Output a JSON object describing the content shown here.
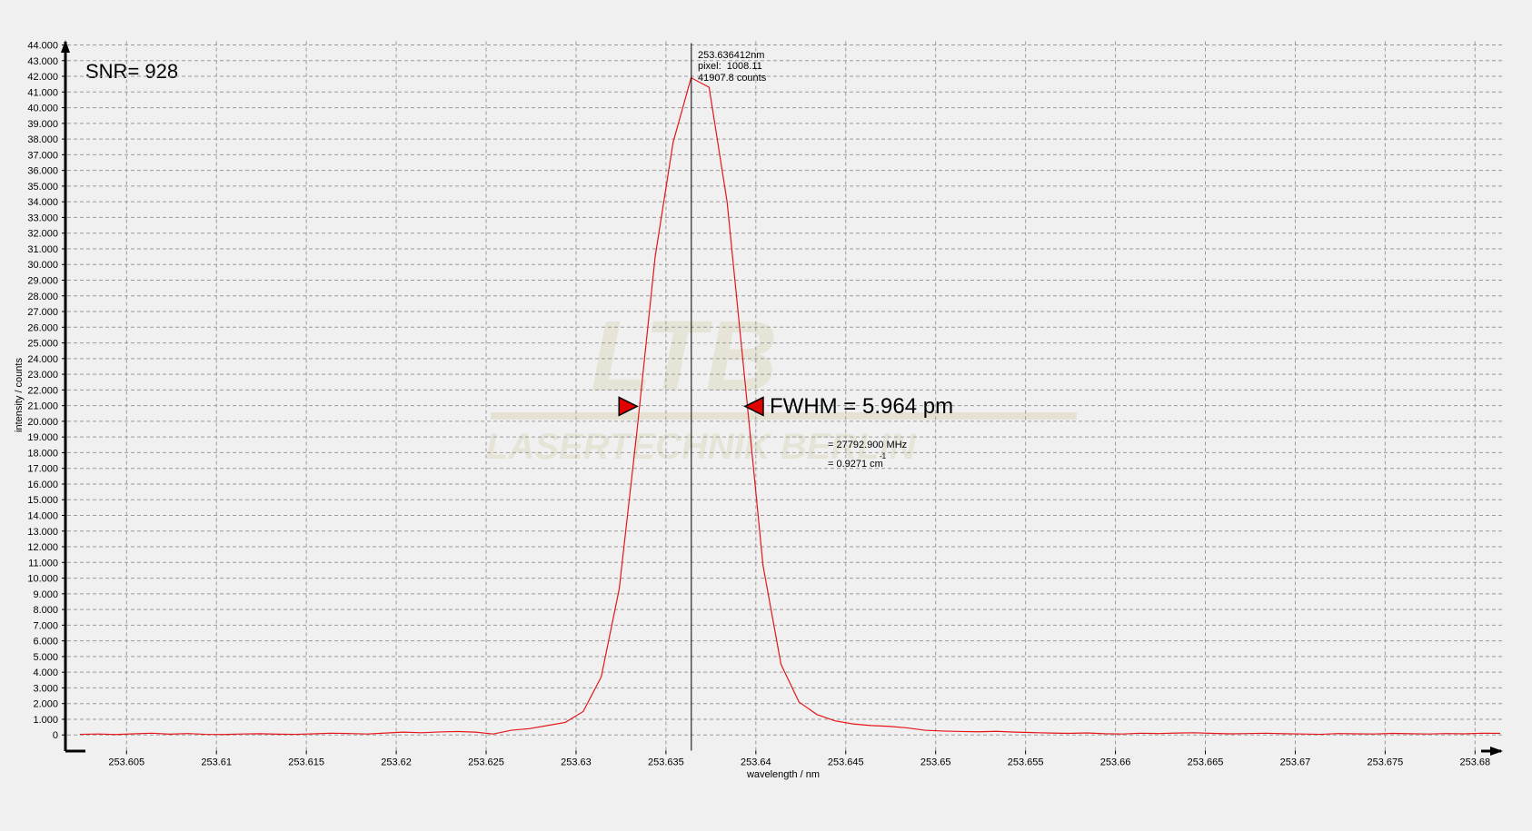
{
  "chart_data": {
    "type": "line",
    "title": "SNR= 928",
    "x_label": "wavelength / nm",
    "y_label": "intensity / counts",
    "color": "#e3161b",
    "grid": true,
    "xlim": [
      253.6016,
      253.6815
    ],
    "ylim": [
      -1000,
      44000
    ],
    "xticks": [
      253.605,
      253.61,
      253.615,
      253.62,
      253.625,
      253.63,
      253.635,
      253.64,
      253.645,
      253.65,
      253.655,
      253.66,
      253.665,
      253.67,
      253.675,
      253.68
    ],
    "yticks": [
      0,
      {
        "value": 1000,
        "label": "1.000"
      },
      {
        "value": 2000,
        "label": "2.000"
      },
      {
        "value": 3000,
        "label": "3.000"
      },
      {
        "value": 4000,
        "label": "4.000"
      },
      {
        "value": 5000,
        "label": "5.000"
      },
      {
        "value": 6000,
        "label": "6.000"
      },
      {
        "value": 7000,
        "label": "7.000"
      },
      {
        "value": 8000,
        "label": "8.000"
      },
      {
        "value": 9000,
        "label": "9.000"
      },
      {
        "value": 10000,
        "label": "10.000"
      },
      {
        "value": 11000,
        "label": "11.000"
      },
      {
        "value": 12000,
        "label": "12.000"
      },
      {
        "value": 13000,
        "label": "13.000"
      },
      {
        "value": 14000,
        "label": "14.000"
      },
      {
        "value": 15000,
        "label": "15.000"
      },
      {
        "value": 16000,
        "label": "16.000"
      },
      {
        "value": 17000,
        "label": "17.000"
      },
      {
        "value": 18000,
        "label": "18.000"
      },
      {
        "value": 19000,
        "label": "19.000"
      },
      {
        "value": 20000,
        "label": "20.000"
      },
      {
        "value": 21000,
        "label": "21.000"
      },
      {
        "value": 22000,
        "label": "22.000"
      },
      {
        "value": 23000,
        "label": "23.000"
      },
      {
        "value": 24000,
        "label": "24.000"
      },
      {
        "value": 25000,
        "label": "25.000"
      },
      {
        "value": 26000,
        "label": "26.000"
      },
      {
        "value": 27000,
        "label": "27.000"
      },
      {
        "value": 28000,
        "label": "28.000"
      },
      {
        "value": 29000,
        "label": "29.000"
      },
      {
        "value": 30000,
        "label": "30.000"
      },
      {
        "value": 31000,
        "label": "31.000"
      },
      {
        "value": 32000,
        "label": "32.000"
      },
      {
        "value": 33000,
        "label": "33.000"
      },
      {
        "value": 34000,
        "label": "34.000"
      },
      {
        "value": 35000,
        "label": "35.000"
      },
      {
        "value": 36000,
        "label": "36.000"
      },
      {
        "value": 37000,
        "label": "37.000"
      },
      {
        "value": 38000,
        "label": "38.000"
      },
      {
        "value": 39000,
        "label": "39.000"
      },
      {
        "value": 40000,
        "label": "40.000"
      },
      {
        "value": 41000,
        "label": "41.000"
      },
      {
        "value": 42000,
        "label": "42.000"
      },
      {
        "value": 43000,
        "label": "43.000"
      },
      {
        "value": 44000,
        "label": "44.000"
      }
    ],
    "x": [
      253.6024,
      253.6034,
      253.6044,
      253.6054,
      253.6064,
      253.6074,
      253.6084,
      253.6094,
      253.6104,
      253.6114,
      253.6124,
      253.6134,
      253.6144,
      253.6154,
      253.6164,
      253.6174,
      253.6184,
      253.6194,
      253.6204,
      253.6214,
      253.6224,
      253.6234,
      253.6244,
      253.6254,
      253.6264,
      253.6274,
      253.6284,
      253.6294,
      253.6304,
      253.6314,
      253.6324,
      253.6334,
      253.6344,
      253.6354,
      253.6364,
      253.6374,
      253.6384,
      253.6394,
      253.6404,
      253.6414,
      253.6424,
      253.6434,
      253.6444,
      253.6454,
      253.6464,
      253.6474,
      253.6484,
      253.6494,
      253.6504,
      253.6514,
      253.6524,
      253.6534,
      253.6544,
      253.6554,
      253.6564,
      253.6574,
      253.6584,
      253.6594,
      253.6604,
      253.6614,
      253.6624,
      253.6634,
      253.6644,
      253.6654,
      253.6664,
      253.6674,
      253.6684,
      253.6694,
      253.6704,
      253.6714,
      253.6724,
      253.6734,
      253.6744,
      253.6754,
      253.6764,
      253.6774,
      253.6784,
      253.6794,
      253.6804,
      253.6814
    ],
    "values": [
      40,
      60,
      30,
      70,
      110,
      50,
      90,
      40,
      30,
      60,
      80,
      50,
      40,
      70,
      110,
      90,
      60,
      120,
      180,
      140,
      190,
      220,
      180,
      60,
      300,
      400,
      600,
      800,
      1500,
      3700,
      9300,
      19500,
      30500,
      37800,
      41907.8,
      41300,
      34000,
      22500,
      10800,
      4500,
      2100,
      1300,
      900,
      700,
      600,
      550,
      450,
      300,
      250,
      220,
      200,
      230,
      180,
      150,
      120,
      100,
      130,
      80,
      60,
      110,
      90,
      120,
      140,
      100,
      70,
      90,
      110,
      80,
      60,
      40,
      90,
      70,
      60,
      100,
      80,
      60,
      90,
      70,
      110,
      100
    ],
    "cursor": {
      "x": 253.636412,
      "labels": [
        "253.636412nm",
        "pixel:  1008.11",
        "41907.8 counts"
      ]
    },
    "fwhm_markers": {
      "x": [
        253.6334,
        253.6394
      ],
      "y": 20954
    },
    "annotations": {
      "fwhm": "FWHM = 5.964 pm",
      "fwhm_frequency": "= 27792.900 MHz",
      "fwhm_wavenumber": "= 0.9271 cm",
      "fwhm_wavenumber_exponent": "-1"
    },
    "watermark": {
      "logo": "LTB",
      "text": "LASERTECHNIK BERLIN"
    }
  }
}
